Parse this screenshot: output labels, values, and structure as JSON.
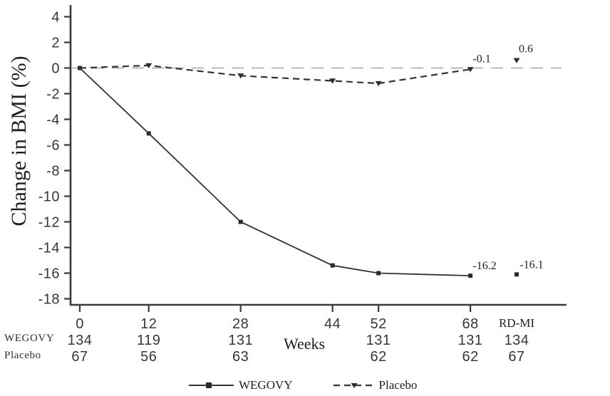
{
  "chart_data": {
    "type": "line",
    "title": "",
    "ylabel": "Change in BMI (%)",
    "xlabel": "Weeks",
    "ylim": [
      -18,
      4
    ],
    "ytick_step": 2,
    "grid": false,
    "legend_position": "bottom",
    "zero_reference_line": true,
    "x_tick_labels": [
      "0",
      "12",
      "28",
      "44",
      "52",
      "68",
      "RD-MI"
    ],
    "x_weeks": [
      0,
      12,
      28,
      44,
      52,
      68
    ],
    "series": [
      {
        "name": "WEGOVY",
        "line": "solid",
        "marker": "square",
        "x": [
          0,
          12,
          28,
          44,
          52,
          68
        ],
        "values": [
          0,
          -5.1,
          -12.0,
          -15.4,
          -16.0,
          -16.2
        ],
        "end_label": "-16.2",
        "detached_point": {
          "x_label": "RD-MI",
          "value": -16.1,
          "label": "-16.1"
        }
      },
      {
        "name": "Placebo",
        "line": "dashed",
        "marker": "triangle-down",
        "x": [
          0,
          12,
          28,
          44,
          52,
          68
        ],
        "values": [
          0,
          0.2,
          -0.6,
          -1.0,
          -1.2,
          -0.1
        ],
        "end_label": "-0.1",
        "detached_point": {
          "x_label": "RD-MI",
          "value": 0.6,
          "label": "0.6"
        }
      }
    ],
    "n_at_risk": {
      "rows": [
        {
          "label": "WEGOVY",
          "values": [
            "134",
            "119",
            "131",
            "",
            "131",
            "131",
            "134"
          ]
        },
        {
          "label": "Placebo",
          "values": [
            "67",
            "56",
            "63",
            "",
            "62",
            "62",
            "67"
          ]
        }
      ]
    },
    "colors": {
      "line": "#333333",
      "marker": "#2b2b2b",
      "zero_line": "#a6a6a6",
      "axis": "#3a3a3a",
      "text": "#1f1f1f"
    }
  }
}
